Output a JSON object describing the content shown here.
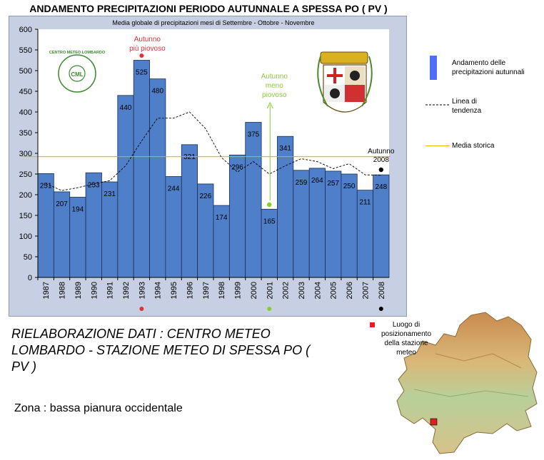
{
  "title": "ANDAMENTO PRECIPITAZIONI PERIODO AUTUNNALE A SPESSA PO ( PV )",
  "chart_data": {
    "type": "bar",
    "subtitle": "Media globale di precipitazioni mesi di Settembre - Ottobre - Novembre",
    "categories": [
      "1987",
      "1988",
      "1989",
      "1990",
      "1991",
      "1992",
      "1993",
      "1994",
      "1995",
      "1996",
      "1997",
      "1998",
      "1999",
      "2000",
      "2001",
      "2002",
      "2003",
      "2004",
      "2005",
      "2006",
      "2007",
      "2008"
    ],
    "series": [
      {
        "name": "Andamento delle precipitazioni autunnali",
        "type": "bar",
        "color": "#4f7fc8",
        "values": [
          251,
          207,
          194,
          253,
          231,
          440,
          525,
          480,
          244,
          321,
          226,
          174,
          296,
          375,
          165,
          341,
          259,
          264,
          257,
          250,
          211,
          248
        ]
      },
      {
        "name": "Linea di tendenza",
        "type": "line",
        "style": "dashed",
        "color": "#000000",
        "values": [
          227,
          210,
          217,
          226,
          234,
          270,
          330,
          385,
          385,
          400,
          360,
          290,
          255,
          280,
          250,
          270,
          287,
          280,
          263,
          275,
          248,
          247
        ]
      },
      {
        "name": "Media storica",
        "type": "line",
        "color": "#e8b600",
        "value": 292
      }
    ],
    "ylim": [
      0,
      600
    ],
    "yticks": [
      0,
      50,
      100,
      150,
      200,
      250,
      300,
      350,
      400,
      450,
      500,
      550,
      600
    ],
    "grid": false,
    "legend_position": "right",
    "annotations": [
      {
        "category": "1993",
        "line1": "Autunno",
        "line2": "più piovoso",
        "color": "#e0303a"
      },
      {
        "category": "2001",
        "line1": "Autunno",
        "line2": "meno",
        "line3": "piovoso",
        "color": "#8acc28"
      },
      {
        "category": "2008",
        "line1": "Autunno",
        "line2": "2008",
        "color": "#000000"
      }
    ]
  },
  "logos": {
    "left_logo_text": "CENTRO METEO LOMBARDO",
    "left_logo_initials": "CML",
    "left_logo_color": "#3a8a2a"
  },
  "legend": {
    "bars": "Andamento delle precipitazioni autunnali",
    "trend": "Linea di tendenza",
    "average": "Media storica"
  },
  "credit": "RIELABORAZIONE DATI : CENTRO METEO LOMBARDO - STAZIONE METEO DI SPESSA PO  ( PV )",
  "zone": "Zona : bassa pianura occidentale",
  "map": {
    "legend": "Luogo di posizionamento della stazione meteo",
    "marker_color": "#e02020"
  }
}
